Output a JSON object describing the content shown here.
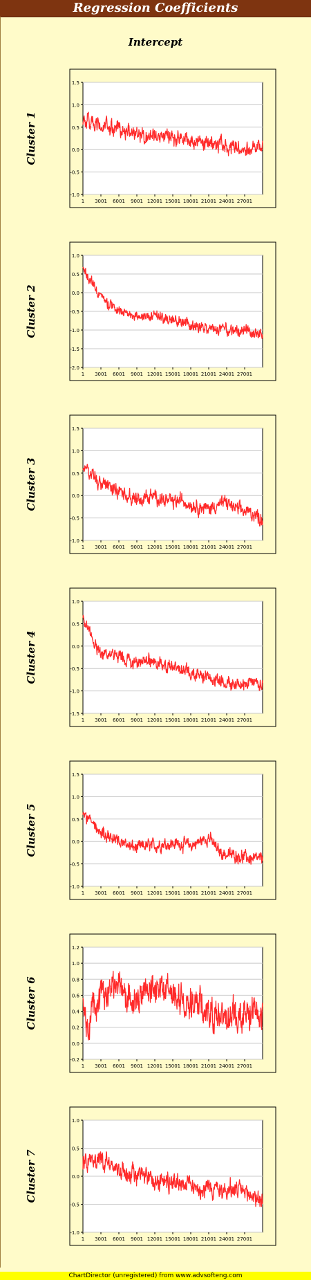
{
  "header": {
    "title": "Regression Coefficients"
  },
  "subtitle": "Intercept",
  "footer": {
    "text": "ChartDirector (unregistered) from www.advsofteng.com"
  },
  "colors": {
    "title_bg": "#7e3410",
    "page_bg": "#fffbc9",
    "series": "#ff2a2a",
    "footer_bg": "#ffff00"
  },
  "chart_data": [
    {
      "type": "line",
      "label": "Cluster 1",
      "ylim": [
        -1.0,
        1.5
      ],
      "yticks": [
        "1.5",
        "1.0",
        "0.5",
        "0.0",
        "-0.5",
        "-1.0"
      ],
      "xticks": [
        "1",
        "3001",
        "6001",
        "9001",
        "12001",
        "15001",
        "18001",
        "21001",
        "24001",
        "27001"
      ],
      "x": [
        1,
        1500,
        3000,
        4500,
        6000,
        7500,
        9000,
        10500,
        12000,
        13500,
        15000,
        16500,
        18000,
        19500,
        21000,
        22500,
        24000,
        25500,
        27000,
        28500,
        30000
      ],
      "values": [
        0.7,
        0.55,
        0.5,
        0.48,
        0.45,
        0.4,
        0.35,
        0.33,
        0.32,
        0.3,
        0.28,
        0.25,
        0.2,
        0.18,
        0.15,
        0.12,
        0.1,
        0.05,
        0.0,
        0.05,
        0.1
      ],
      "noise": 0.14,
      "grid": true
    },
    {
      "type": "line",
      "label": "Cluster 2",
      "ylim": [
        -2.0,
        1.0
      ],
      "yticks": [
        "1.0",
        "0.5",
        "0.0",
        "-0.5",
        "-1.0",
        "-1.5",
        "-2.0"
      ],
      "xticks": [
        "1",
        "3001",
        "6001",
        "9001",
        "12001",
        "15001",
        "18001",
        "21001",
        "24001",
        "27001"
      ],
      "x": [
        1,
        1000,
        2500,
        4000,
        6000,
        7500,
        9000,
        10500,
        12000,
        13500,
        15000,
        16500,
        18000,
        19500,
        21000,
        22500,
        24000,
        25500,
        27000,
        28500,
        30000
      ],
      "values": [
        0.6,
        0.4,
        0.0,
        -0.3,
        -0.45,
        -0.55,
        -0.65,
        -0.65,
        -0.6,
        -0.7,
        -0.75,
        -0.8,
        -0.9,
        -0.95,
        -0.95,
        -1.0,
        -1.0,
        -1.05,
        -1.05,
        -1.1,
        -1.15
      ],
      "noise": 0.12,
      "grid": true
    },
    {
      "type": "line",
      "label": "Cluster 3",
      "ylim": [
        -1.0,
        1.5
      ],
      "yticks": [
        "1.5",
        "1.0",
        "0.5",
        "0.0",
        "-0.5",
        "-1.0"
      ],
      "xticks": [
        "1",
        "3001",
        "6001",
        "9001",
        "12001",
        "15001",
        "18001",
        "21001",
        "24001",
        "27001"
      ],
      "x": [
        1,
        1000,
        2500,
        4000,
        6000,
        7500,
        9000,
        10500,
        12000,
        13500,
        15000,
        16500,
        18000,
        19500,
        21000,
        22500,
        24000,
        25500,
        27000,
        28500,
        30000
      ],
      "values": [
        0.6,
        0.5,
        0.3,
        0.2,
        0.1,
        0.0,
        -0.1,
        -0.05,
        0.0,
        -0.1,
        -0.15,
        -0.1,
        -0.2,
        -0.25,
        -0.3,
        -0.2,
        -0.15,
        -0.3,
        -0.35,
        -0.4,
        -0.55
      ],
      "noise": 0.13,
      "grid": true
    },
    {
      "type": "line",
      "label": "Cluster 4",
      "ylim": [
        -1.5,
        1.0
      ],
      "yticks": [
        "1.0",
        "0.5",
        "0.0",
        "-0.5",
        "-1.0",
        "-1.5"
      ],
      "xticks": [
        "1",
        "3001",
        "6001",
        "9001",
        "12001",
        "15001",
        "18001",
        "21001",
        "24001",
        "27001"
      ],
      "x": [
        1,
        1000,
        2500,
        4000,
        6000,
        7500,
        9000,
        10500,
        12000,
        13500,
        15000,
        16500,
        18000,
        19500,
        21000,
        22500,
        24000,
        25500,
        27000,
        28500,
        30000
      ],
      "values": [
        0.6,
        0.4,
        -0.1,
        -0.2,
        -0.25,
        -0.3,
        -0.35,
        -0.35,
        -0.35,
        -0.4,
        -0.45,
        -0.5,
        -0.6,
        -0.65,
        -0.7,
        -0.75,
        -0.8,
        -0.85,
        -0.85,
        -0.85,
        -0.85
      ],
      "noise": 0.12,
      "grid": true
    },
    {
      "type": "line",
      "label": "Cluster 5",
      "ylim": [
        -1.0,
        1.5
      ],
      "yticks": [
        "1.5",
        "1.0",
        "0.5",
        "0.0",
        "-0.5",
        "-1.0"
      ],
      "xticks": [
        "1",
        "3001",
        "6001",
        "9001",
        "12001",
        "15001",
        "18001",
        "21001",
        "24001",
        "27001"
      ],
      "x": [
        1,
        1000,
        2500,
        4000,
        6000,
        7500,
        9000,
        10500,
        12000,
        13500,
        15000,
        16500,
        18000,
        19500,
        21000,
        22500,
        24000,
        25500,
        27000,
        28500,
        30000
      ],
      "values": [
        0.65,
        0.5,
        0.3,
        0.1,
        0.0,
        -0.1,
        -0.15,
        -0.1,
        -0.1,
        -0.05,
        -0.05,
        -0.05,
        -0.1,
        0.0,
        0.1,
        -0.2,
        -0.3,
        -0.3,
        -0.35,
        -0.4,
        -0.4
      ],
      "noise": 0.12,
      "grid": true
    },
    {
      "type": "line",
      "label": "Cluster 6",
      "ylim": [
        -0.2,
        1.2
      ],
      "yticks": [
        "1.2",
        "1.0",
        "0.8",
        "0.6",
        "0.4",
        "0.2",
        "0.0",
        "-0.2"
      ],
      "xticks": [
        "1",
        "3001",
        "6001",
        "9001",
        "12001",
        "15001",
        "18001",
        "21001",
        "24001",
        "27001"
      ],
      "x": [
        1,
        500,
        1000,
        1500,
        2500,
        4000,
        6000,
        7500,
        9000,
        10500,
        12000,
        13500,
        15000,
        16500,
        18000,
        19500,
        21000,
        22500,
        24000,
        25500,
        27000,
        28500,
        30000
      ],
      "values": [
        0.6,
        0.2,
        0.1,
        0.35,
        0.55,
        0.7,
        0.65,
        0.6,
        0.55,
        0.6,
        0.7,
        0.65,
        0.6,
        0.55,
        0.5,
        0.45,
        0.4,
        0.35,
        0.35,
        0.35,
        0.35,
        0.4,
        0.4
      ],
      "noise": 0.17,
      "grid": true
    },
    {
      "type": "line",
      "label": "Cluster 7",
      "ylim": [
        -1.0,
        1.0
      ],
      "yticks": [
        "1.0",
        "0.5",
        "0.0",
        "-0.5",
        "-1.0"
      ],
      "xticks": [
        "1",
        "3001",
        "6001",
        "9001",
        "12001",
        "15001",
        "18001",
        "21001",
        "24001",
        "27001"
      ],
      "x": [
        1,
        1500,
        3000,
        4500,
        6000,
        7500,
        9000,
        10500,
        12000,
        13500,
        15000,
        16500,
        18000,
        19500,
        21000,
        22500,
        24000,
        25500,
        27000,
        28500,
        30000
      ],
      "values": [
        0.25,
        0.3,
        0.3,
        0.2,
        0.1,
        0.05,
        0.0,
        -0.05,
        -0.05,
        -0.1,
        -0.1,
        -0.1,
        -0.15,
        -0.2,
        -0.2,
        -0.25,
        -0.25,
        -0.25,
        -0.3,
        -0.35,
        -0.45
      ],
      "noise": 0.14,
      "grid": true
    }
  ]
}
